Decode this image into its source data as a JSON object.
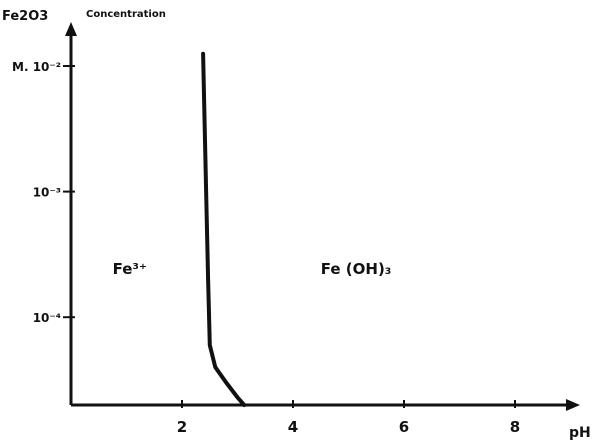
{
  "chart_data": {
    "type": "line",
    "title": "",
    "xlabel": "pH",
    "ylabel_top": "Fe2O3",
    "ylabel_side": "Concentration",
    "ylabel_unit": "M. 10⁻²",
    "xlim": [
      0,
      9
    ],
    "ylim": [
      2e-05,
      0.0125
    ],
    "y_scale": "log",
    "x_ticks": [
      {
        "value": 2,
        "label": "2"
      },
      {
        "value": 4,
        "label": "4"
      },
      {
        "value": 6,
        "label": "6"
      },
      {
        "value": 8,
        "label": "8"
      }
    ],
    "y_ticks": [
      {
        "value": 0.01,
        "label": "M. 10⁻²"
      },
      {
        "value": 0.001,
        "label": "10⁻³"
      },
      {
        "value": 0.0001,
        "label": "10⁻⁴"
      }
    ],
    "grid": false,
    "series": [
      {
        "points": [
          {
            "x": 2.38,
            "y": 0.0125
          },
          {
            "x": 2.41,
            "y": 0.003
          },
          {
            "x": 2.44,
            "y": 0.0008
          },
          {
            "x": 2.47,
            "y": 0.0002
          },
          {
            "x": 2.5,
            "y": 6e-05
          },
          {
            "x": 2.6,
            "y": 4e-05
          },
          {
            "x": 2.8,
            "y": 3e-05
          },
          {
            "x": 3.0,
            "y": 2.3e-05
          },
          {
            "x": 3.12,
            "y": 2e-05
          }
        ],
        "color": "#111111"
      }
    ],
    "annotations": [
      {
        "text": "Fe³⁺",
        "x": 0.75,
        "y": 0.00022
      },
      {
        "text": "Fe (OH)₃",
        "x": 4.5,
        "y": 0.00022
      }
    ]
  }
}
